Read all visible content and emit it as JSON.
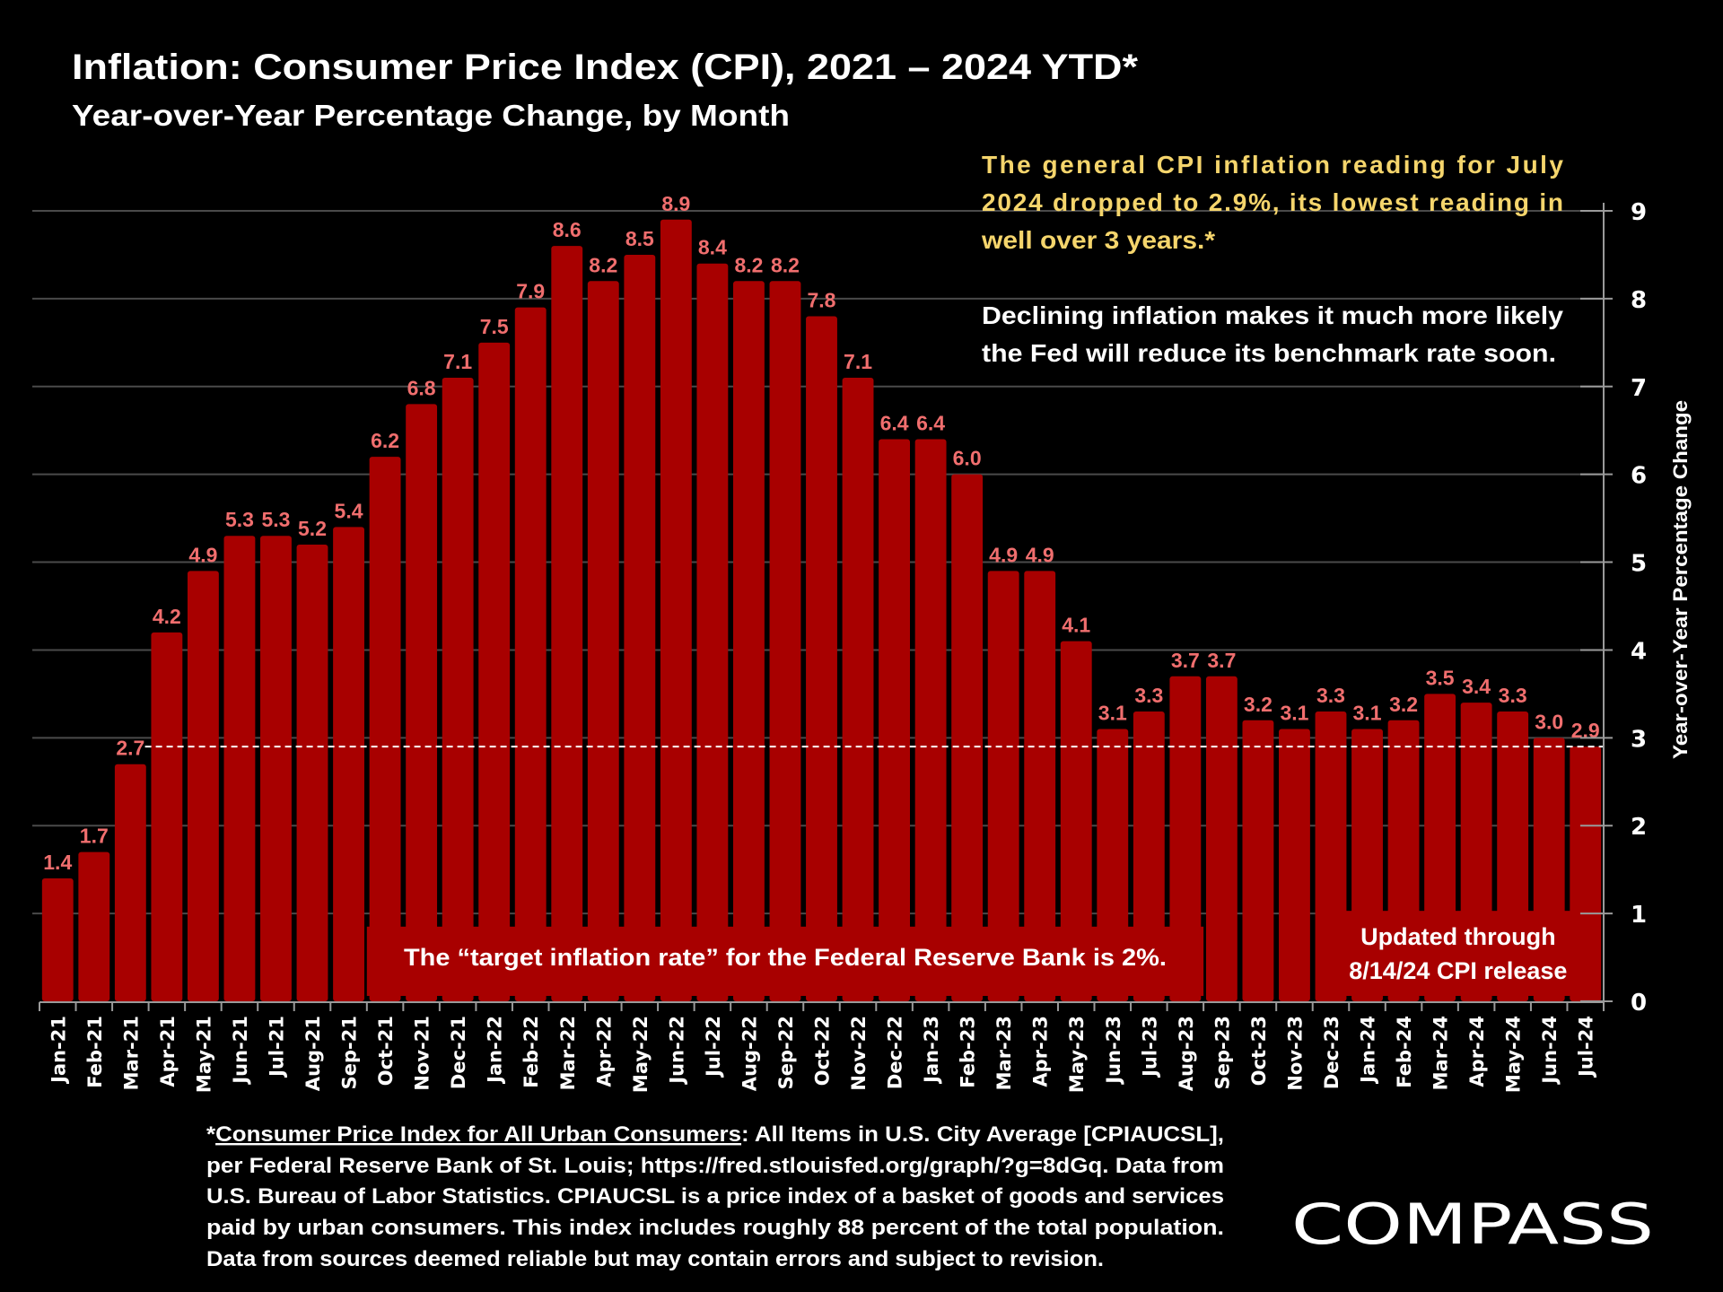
{
  "header": {
    "title": "Inflation: Consumer Price Index (CPI), 2021 – 2024 YTD*",
    "subtitle": "Year-over-Year Percentage Change, by Month"
  },
  "callout": {
    "highlight_lines": [
      "The general CPI inflation reading for July",
      "2024 dropped to 2.9%, its lowest reading in",
      "well over 3 years.*"
    ],
    "body_lines": [
      "Declining inflation makes it much more likely",
      "the Fed will reduce its benchmark rate soon."
    ],
    "highlight_color": "#f5d56c"
  },
  "annotations": {
    "target_rate": "The “target inflation rate” for the Federal Reserve Bank is 2%.",
    "updated_lines": [
      "Updated through",
      "8/14/24 CPI release"
    ]
  },
  "footnote": {
    "lines": [
      {
        "underlined": "Consumer Price Index for All Urban Consumers",
        "prefix": "*",
        "rest": ": All Items in U.S. City Average [CPIAUCSL],"
      },
      {
        "text": "per Federal Reserve Bank of St. Louis; https://fred.stlouisfed.org/graph/?g=8dGq. Data from"
      },
      {
        "text": "U.S. Bureau of Labor Statistics. CPIAUCSL is a price index of a basket of goods and services"
      },
      {
        "text": "paid by urban consumers. This index includes roughly 88 percent of the total population."
      },
      {
        "text": "Data from sources deemed reliable but may contain errors and subject to revision."
      }
    ]
  },
  "logo": {
    "text": "COMPASS"
  },
  "colors": {
    "background": "#000000",
    "bar": "#a80000",
    "data_label": "#f06e6e",
    "gridline": "#4a4a4a",
    "axis": "#9a9a9a",
    "reference_line": "#ffffff"
  },
  "chart_data": {
    "type": "bar",
    "title": "Inflation: Consumer Price Index (CPI), 2021 – 2024 YTD*",
    "subtitle": "Year-over-Year Percentage Change, by Month",
    "xlabel": "",
    "ylabel": "Year-over-Year Percentage Change",
    "y_axis_side": "right",
    "ylim": [
      0,
      9
    ],
    "yticks": [
      0,
      1,
      2,
      3,
      4,
      5,
      6,
      7,
      8,
      9
    ],
    "grid": true,
    "legend": "none",
    "categories": [
      "Jan-21",
      "Feb-21",
      "Mar-21",
      "Apr-21",
      "May-21",
      "Jun-21",
      "Jul-21",
      "Aug-21",
      "Sep-21",
      "Oct-21",
      "Nov-21",
      "Dec-21",
      "Jan-22",
      "Feb-22",
      "Mar-22",
      "Apr-22",
      "May-22",
      "Jun-22",
      "Jul-22",
      "Aug-22",
      "Sep-22",
      "Oct-22",
      "Nov-22",
      "Dec-22",
      "Jan-23",
      "Feb-23",
      "Mar-23",
      "Apr-23",
      "May-23",
      "Jun-23",
      "Jul-23",
      "Aug-23",
      "Sep-23",
      "Oct-23",
      "Nov-23",
      "Dec-23",
      "Jan-24",
      "Feb-24",
      "Mar-24",
      "Apr-24",
      "May-24",
      "Jun-24",
      "Jul-24"
    ],
    "values": [
      1.4,
      1.7,
      2.7,
      4.2,
      4.9,
      5.3,
      5.3,
      5.2,
      5.4,
      6.2,
      6.8,
      7.1,
      7.5,
      7.9,
      8.6,
      8.2,
      8.5,
      8.9,
      8.4,
      8.2,
      8.2,
      7.8,
      7.1,
      6.4,
      6.4,
      6.0,
      4.9,
      4.9,
      4.1,
      3.1,
      3.3,
      3.7,
      3.7,
      3.2,
      3.1,
      3.3,
      3.1,
      3.2,
      3.5,
      3.4,
      3.3,
      3.0,
      2.9
    ],
    "data_labels": [
      "1.4",
      "1.7",
      "2.7",
      "4.2",
      "4.9",
      "5.3",
      "5.3",
      "5.2",
      "5.4",
      "6.2",
      "6.8",
      "7.1",
      "7.5",
      "7.9",
      "8.6",
      "8.2",
      "8.5",
      "8.9",
      "8.4",
      "8.2",
      "8.2",
      "7.8",
      "7.1",
      "6.4",
      "6.4",
      "6.0",
      "4.9",
      "4.9",
      "4.1",
      "3.1",
      "3.3",
      "3.7",
      "3.7",
      "3.2",
      "3.1",
      "3.3",
      "3.1",
      "3.2",
      "3.5",
      "3.4",
      "3.3",
      "3.0",
      "2.9"
    ],
    "reference_line": {
      "value": 2.9,
      "style": "dashed",
      "from_category": "Apr-21",
      "to_category": "Jul-24"
    },
    "annotation_boxes": [
      {
        "text": "The “target inflation rate” for the Federal Reserve Bank is 2%.",
        "from_category": "Oct-21",
        "to_category": "Aug-23",
        "value_top": 0.85
      },
      {
        "text": "Updated through 8/14/24 CPI release",
        "from_category": "Dec-23",
        "to_category": "Jul-24",
        "value_top": 1.03
      }
    ]
  }
}
